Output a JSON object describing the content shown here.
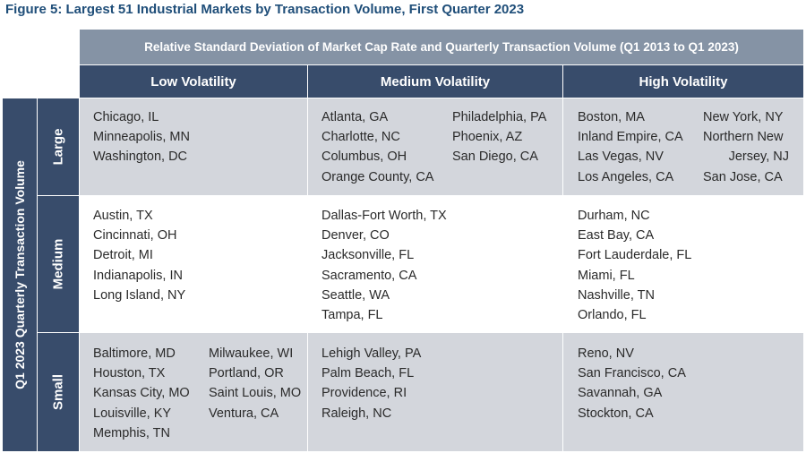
{
  "chart_data": {
    "type": "table",
    "title": "Figure 5: Largest 51 Industrial Markets by Transaction Volume, First Quarter 2023",
    "column_group_label": "Relative Standard Deviation of Market Cap Rate and Quarterly Transaction Volume (Q1 2013 to Q1 2023)",
    "row_group_label": "Q1 2023 Quarterly Transaction Volume",
    "columns": [
      "Low Volatility",
      "Medium Volatility",
      "High Volatility"
    ],
    "rows": [
      "Large",
      "Medium",
      "Small"
    ],
    "cells": {
      "large_low": {
        "col1": [
          "Chicago, IL",
          "Minneapolis, MN",
          "Washington, DC"
        ],
        "col2": []
      },
      "large_medium": {
        "col1": [
          "Atlanta, GA",
          "Charlotte, NC",
          "Columbus, OH",
          "Orange County, CA"
        ],
        "col2": [
          "Philadelphia, PA",
          "Phoenix, AZ",
          "San Diego, CA"
        ]
      },
      "large_high": {
        "col1": [
          "Boston, MA",
          "Inland Empire, CA",
          "Las Vegas, NV",
          "Los Angeles, CA"
        ],
        "col2": [
          "New York, NY",
          "Northern New",
          "Jersey, NJ",
          "San Jose, CA"
        ]
      },
      "medium_low": {
        "col1": [
          "Austin, TX",
          "Cincinnati, OH",
          "Detroit, MI",
          "Indianapolis, IN",
          "Long Island, NY"
        ],
        "col2": []
      },
      "medium_medium": {
        "col1": [
          "Dallas-Fort Worth, TX",
          "Denver, CO",
          "Jacksonville, FL",
          "Sacramento, CA",
          "Seattle, WA",
          "Tampa, FL"
        ],
        "col2": []
      },
      "medium_high": {
        "col1": [
          "Durham, NC",
          "East Bay, CA",
          "Fort Lauderdale, FL",
          "Miami, FL",
          "Nashville, TN",
          "Orlando, FL"
        ],
        "col2": []
      },
      "small_low": {
        "col1": [
          "Baltimore, MD",
          "Houston, TX",
          "Kansas City, MO",
          "Louisville, KY",
          "Memphis, TN"
        ],
        "col2": [
          "Milwaukee, WI",
          "Portland, OR",
          "Saint Louis, MO",
          "Ventura, CA"
        ]
      },
      "small_medium": {
        "col1": [
          "Lehigh Valley, PA",
          "Palm Beach, FL",
          "Providence, RI",
          "Raleigh, NC"
        ],
        "col2": []
      },
      "small_high": {
        "col1": [
          "Reno, NV",
          "San Francisco, CA",
          "Savannah, GA",
          "Stockton, CA"
        ],
        "col2": []
      }
    },
    "colors": {
      "title": "#1f4e79",
      "header_dark": "#384c6b",
      "header_light": "#8593a5",
      "cell_shade": "#d3d6dc",
      "cell_plain": "#ffffff"
    }
  }
}
